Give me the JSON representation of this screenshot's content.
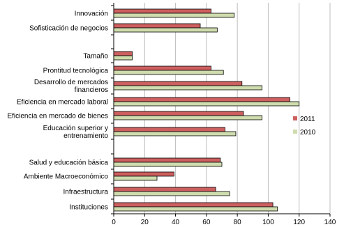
{
  "chart_data": {
    "type": "bar",
    "orientation": "horizontal",
    "categories": [
      "Innovación",
      "Sofisticación de negocios",
      "",
      "Tamaño",
      "Prontitud tecnológica",
      "Desarrollo de mercados financieros",
      "Eficiencia en mercado laboral",
      "Eficiencia en mercado de bienes",
      "Educación superior y entrenamiento",
      "",
      "Salud y educación básica",
      "Ambiente Macroeconómico",
      "Infraestructura",
      "Instituciones"
    ],
    "category_lines": [
      [
        "Innovación"
      ],
      [
        "Sofisticación de negocios"
      ],
      [],
      [
        "Tamaño"
      ],
      [
        "Prontitud tecnológica"
      ],
      [
        "Desarrollo de mercados",
        "financieros"
      ],
      [
        "Eficiencia en mercado laboral"
      ],
      [
        "Eficiencia en mercado de bienes"
      ],
      [
        "Educación superior y",
        "entrenamiento"
      ],
      [],
      [
        "Salud y educación básica"
      ],
      [
        "Ambiente Macroeconómico"
      ],
      [
        "Infraestructura"
      ],
      [
        "Instituciones"
      ]
    ],
    "series": [
      {
        "name": "2011",
        "color": "#cd5f5f",
        "values": [
          63,
          56,
          null,
          12,
          63,
          83,
          114,
          84,
          72,
          null,
          69,
          39,
          66,
          103
        ]
      },
      {
        "name": "2010",
        "color": "#cfdcae",
        "values": [
          78,
          67,
          null,
          12,
          71,
          96,
          120,
          96,
          79,
          null,
          70,
          28,
          75,
          106
        ]
      }
    ],
    "xlim": [
      0,
      140
    ],
    "xticks": [
      0,
      20,
      40,
      60,
      80,
      100,
      120,
      140
    ],
    "grid": "vertical",
    "legend": "right",
    "title": "",
    "xlabel": "",
    "ylabel": ""
  }
}
